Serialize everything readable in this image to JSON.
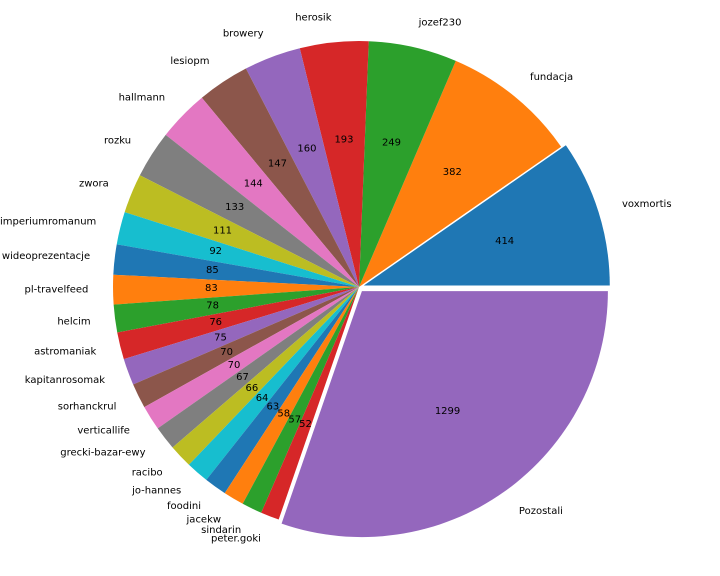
{
  "chart_data": {
    "type": "pie",
    "title": "",
    "start_angle_deg": 0,
    "direction": "counterclockwise",
    "exploded_slices": [
      "voxmortis",
      "Pozostali"
    ],
    "colors": [
      "#1f77b4",
      "#ff7f0e",
      "#2ca02c",
      "#d62728",
      "#9467bd",
      "#8c564b",
      "#e377c2",
      "#7f7f7f",
      "#bcbd22",
      "#17becf"
    ],
    "labels": [
      "voxmortis",
      "fundacja",
      "jozef230",
      "herosik",
      "browery",
      "lesiopm",
      "hallmann",
      "rozku",
      "zwora",
      "imperiumromanum",
      "wideoprezentacje",
      "pl-travelfeed",
      "helcim",
      "astromaniak",
      "kapitanrosomak",
      "sorhanckrul",
      "verticallife",
      "grecki-bazar-ewy",
      "racibo",
      "jo-hannes",
      "foodini",
      "jacekw",
      "sindarin",
      "peter.goki",
      "Pozostali"
    ],
    "values": [
      414,
      382,
      249,
      193,
      160,
      147,
      144,
      133,
      111,
      92,
      85,
      83,
      78,
      76,
      75,
      70,
      70,
      67,
      66,
      64,
      63,
      58,
      57,
      52,
      1299
    ],
    "value_labels": [
      "414",
      "382",
      "249",
      "193",
      "160",
      "147",
      "144",
      "133",
      "111",
      "92",
      "85",
      "83",
      "78",
      "76",
      "75",
      "70",
      "70",
      "67",
      "66",
      "64",
      "63",
      "58",
      "57",
      "52",
      "1299"
    ]
  }
}
